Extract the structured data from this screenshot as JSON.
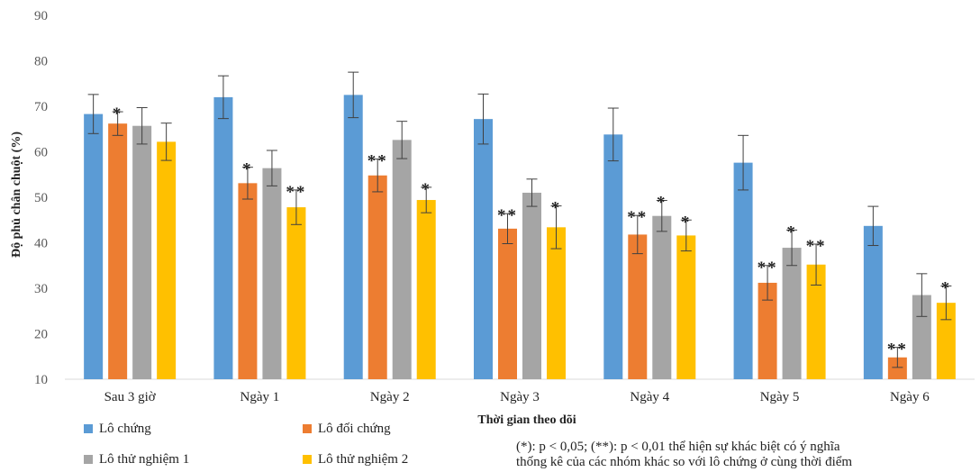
{
  "chart_data": {
    "type": "bar",
    "title": "",
    "xlabel": "Thời gian theo dõi",
    "ylabel": "Độ phủ chân chuột (%)",
    "ylim": [
      10,
      90
    ],
    "yticks": [
      10,
      20,
      30,
      40,
      50,
      60,
      70,
      80,
      90
    ],
    "grid": false,
    "categories": [
      "Sau 3 giờ",
      "Ngày 1",
      "Ngày 2",
      "Ngày 3",
      "Ngày 4",
      "Ngày 5",
      "Ngày 6"
    ],
    "series": [
      {
        "name": "Lô chứng",
        "color": "#5B9BD5",
        "values": [
          68.3,
          72.0,
          72.5,
          67.2,
          63.8,
          57.6,
          43.7
        ],
        "errors": [
          4.3,
          4.7,
          5.0,
          5.5,
          5.8,
          6.0,
          4.3
        ],
        "marks": [
          "",
          "",
          "",
          "",
          "",
          "",
          ""
        ]
      },
      {
        "name": "Lô đối chứng",
        "color": "#ED7D31",
        "values": [
          66.2,
          53.1,
          54.8,
          43.1,
          41.8,
          31.2,
          14.8
        ],
        "errors": [
          2.6,
          3.5,
          3.6,
          3.3,
          4.2,
          3.8,
          2.2
        ],
        "marks": [
          "*",
          "*",
          "**",
          "**",
          "**",
          "**",
          "**"
        ]
      },
      {
        "name": "Lô thử nghiệm 1",
        "color": "#A5A5A5",
        "values": [
          65.7,
          56.4,
          62.6,
          51.0,
          45.9,
          38.9,
          28.5
        ],
        "errors": [
          4.0,
          3.9,
          4.1,
          3.0,
          3.4,
          3.9,
          4.7
        ],
        "marks": [
          "",
          "",
          "",
          "",
          "*",
          "*",
          ""
        ]
      },
      {
        "name": "Lô thử nghiệm 2",
        "color": "#FFC000",
        "values": [
          62.2,
          47.8,
          49.4,
          43.4,
          41.6,
          35.2,
          26.8
        ],
        "errors": [
          4.1,
          3.8,
          2.8,
          4.7,
          3.4,
          4.5,
          3.7
        ],
        "marks": [
          "",
          "**",
          "*",
          "*",
          "*",
          "**",
          "*"
        ]
      }
    ]
  },
  "legend_title": "",
  "footnote": {
    "line1": "(*): p < 0,05; (**): p < 0,01 thể hiện sự khác biệt có ý nghĩa",
    "line2": "thống kê của các nhóm khác so với lô chứng ở cùng thời điểm"
  }
}
